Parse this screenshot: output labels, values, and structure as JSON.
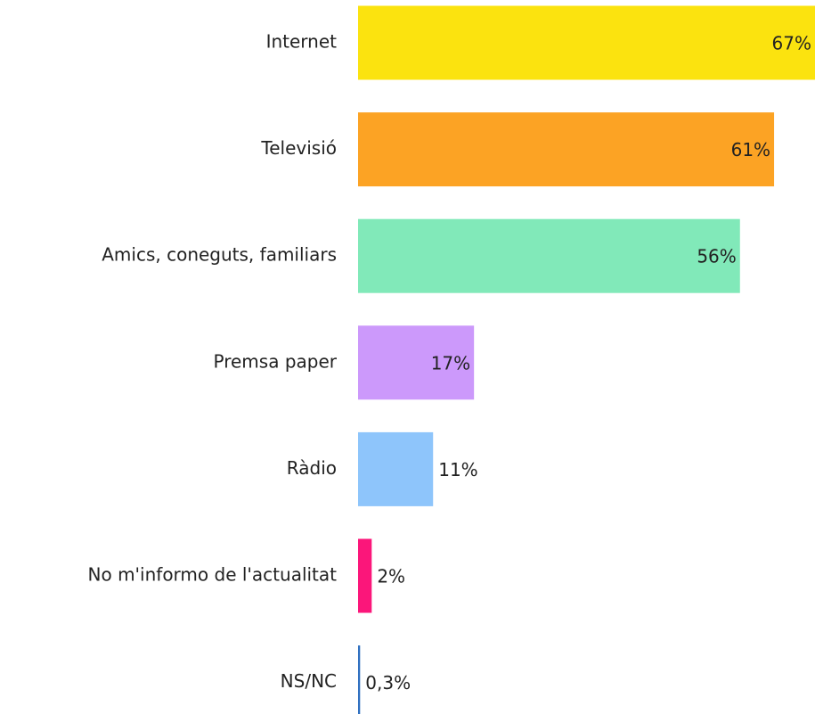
{
  "chart_data": {
    "type": "barh",
    "categories": [
      "Internet",
      "Televisió",
      "Amics, coneguts, familiars",
      "Premsa paper",
      "Ràdio",
      "No m'informo de l'actualitat",
      "NS/NC"
    ],
    "values": [
      67,
      61,
      56,
      17,
      11,
      2,
      0.3
    ],
    "value_labels": [
      "67%",
      "61%",
      "56%",
      "17%",
      "11%",
      "2%",
      "0,3%"
    ],
    "colors": [
      "#fbe30f",
      "#fca324",
      "#81e9b9",
      "#cc99fb",
      "#8ec5fb",
      "#fb167a",
      "#2e6fc0"
    ]
  }
}
